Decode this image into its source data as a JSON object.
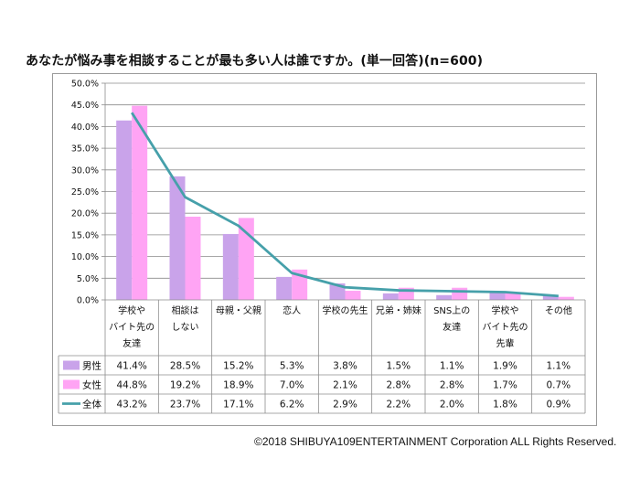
{
  "title": "あなたが悩み事を相談することが最も多い人は誰ですか。(単一回答)(n=600)",
  "footer": "©2018  SHIBUYA109ENTERTAINMENT Corporation  ALL Rights Reserved.",
  "colors": {
    "male": "#c9a3ea",
    "female": "#ffa4f4",
    "total": "#46a0aa",
    "grid": "#8c8c8c"
  },
  "chart_data": {
    "type": "bar",
    "ylim": [
      0,
      50
    ],
    "yticks": [
      "0.0%",
      "5.0%",
      "10.0%",
      "15.0%",
      "20.0%",
      "25.0%",
      "30.0%",
      "35.0%",
      "40.0%",
      "45.0%",
      "50.0%"
    ],
    "categories": [
      [
        "学校や",
        "バイト先の",
        "友達"
      ],
      [
        "相談は",
        "しない"
      ],
      [
        "母親・父親"
      ],
      [
        "恋人"
      ],
      [
        "学校の先生"
      ],
      [
        "兄弟・姉妹"
      ],
      [
        "SNS上の",
        "友達"
      ],
      [
        "学校や",
        "バイト先の",
        "先輩"
      ],
      [
        "その他"
      ]
    ],
    "series": [
      {
        "name": "男性",
        "type": "bar",
        "values": [
          41.4,
          28.5,
          15.2,
          5.3,
          3.8,
          1.5,
          1.1,
          1.9,
          1.1
        ],
        "labels": [
          "41.4%",
          "28.5%",
          "15.2%",
          "5.3%",
          "3.8%",
          "1.5%",
          "1.1%",
          "1.9%",
          "1.1%"
        ]
      },
      {
        "name": "女性",
        "type": "bar",
        "values": [
          44.8,
          19.2,
          18.9,
          7.0,
          2.1,
          2.8,
          2.8,
          1.7,
          0.7
        ],
        "labels": [
          "44.8%",
          "19.2%",
          "18.9%",
          "7.0%",
          "2.1%",
          "2.8%",
          "2.8%",
          "1.7%",
          "0.7%"
        ]
      },
      {
        "name": "全体",
        "type": "line",
        "values": [
          43.2,
          23.7,
          17.1,
          6.2,
          2.9,
          2.2,
          2.0,
          1.8,
          0.9
        ],
        "labels": [
          "43.2%",
          "23.7%",
          "17.1%",
          "6.2%",
          "2.9%",
          "2.2%",
          "2.0%",
          "1.8%",
          "0.9%"
        ]
      }
    ],
    "legend": "data-table"
  }
}
